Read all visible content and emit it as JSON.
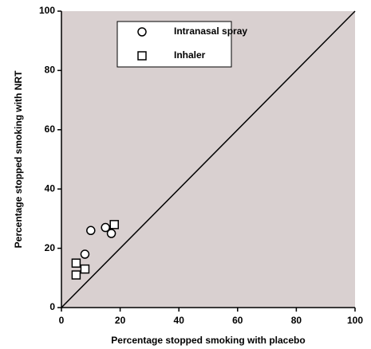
{
  "chart_data": {
    "type": "scatter",
    "xlabel": "Percentage stopped smoking with placebo",
    "ylabel": "Percentage stopped smoking with NRT",
    "xlim": [
      0,
      100
    ],
    "ylim": [
      0,
      100
    ],
    "xticks": [
      0,
      20,
      40,
      60,
      80,
      100
    ],
    "yticks": [
      0,
      20,
      40,
      60,
      80,
      100
    ],
    "background": "#d9d0d0",
    "legend": "top",
    "series": [
      {
        "name": "Intranasal spray",
        "marker": "circle",
        "color": "#000000",
        "x": [
          10,
          15,
          17,
          8
        ],
        "values": [
          26,
          27,
          25,
          18
        ]
      },
      {
        "name": "Inhaler",
        "marker": "square",
        "color": "#000000",
        "x": [
          18,
          5,
          8,
          5
        ],
        "values": [
          28,
          15,
          13,
          11
        ]
      }
    ]
  }
}
